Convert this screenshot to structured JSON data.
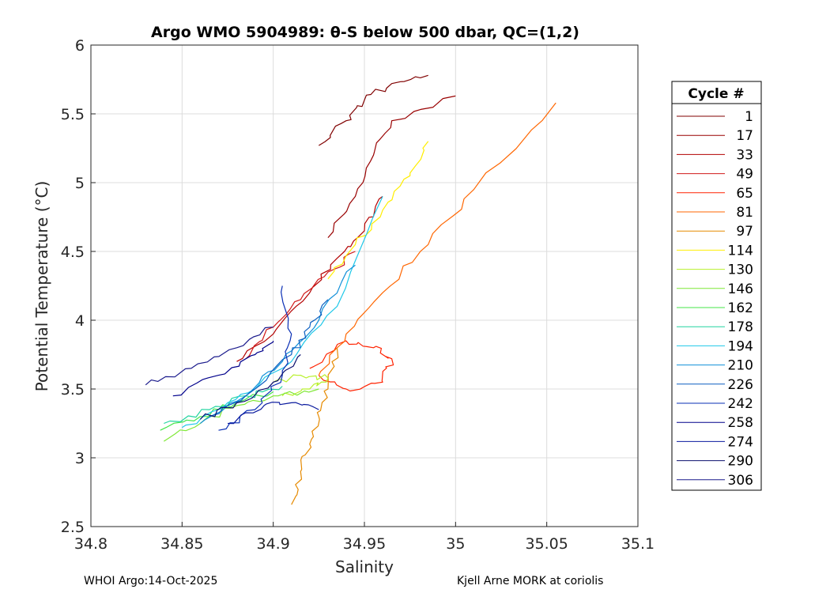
{
  "chart_data": {
    "type": "line",
    "title": "Argo WMO 5904989: θ-S below 500 dbar,  QC=(1,2)",
    "xlabel": "Salinity",
    "ylabel": "Potential Temperature (°C)",
    "xlim": [
      34.8,
      35.1
    ],
    "ylim": [
      2.5,
      6
    ],
    "xticks": [
      34.8,
      34.85,
      34.9,
      34.95,
      35,
      35.05,
      35.1
    ],
    "xtick_labels": [
      "34.8",
      "34.85",
      "34.9",
      "34.95",
      "35",
      "35.05",
      "35.1"
    ],
    "yticks": [
      2.5,
      3,
      3.5,
      4,
      4.5,
      5,
      5.5,
      6
    ],
    "ytick_labels": [
      "2.5",
      "3",
      "3.5",
      "4",
      "4.5",
      "5",
      "5.5",
      "6"
    ],
    "grid": true,
    "legend_title": "Cycle #",
    "legend_position": "right",
    "series": [
      {
        "name": "1",
        "color": "#800000",
        "points": [
          [
            34.925,
            5.27
          ],
          [
            34.94,
            5.45
          ],
          [
            34.95,
            5.6
          ],
          [
            34.965,
            5.72
          ],
          [
            34.985,
            5.78
          ]
        ]
      },
      {
        "name": "17",
        "color": "#990000",
        "points": [
          [
            34.93,
            4.6
          ],
          [
            34.945,
            4.9
          ],
          [
            34.955,
            5.2
          ],
          [
            34.965,
            5.45
          ],
          [
            35.0,
            5.63
          ]
        ]
      },
      {
        "name": "33",
        "color": "#b30000",
        "points": [
          [
            34.88,
            3.7
          ],
          [
            34.9,
            3.9
          ],
          [
            34.92,
            4.2
          ],
          [
            34.935,
            4.45
          ],
          [
            34.95,
            4.65
          ],
          [
            34.96,
            4.9
          ]
        ]
      },
      {
        "name": "49",
        "color": "#d11a1a",
        "points": [
          [
            34.885,
            3.72
          ],
          [
            34.9,
            3.95
          ],
          [
            34.915,
            4.15
          ],
          [
            34.93,
            4.35
          ],
          [
            34.945,
            4.5
          ]
        ]
      },
      {
        "name": "65",
        "color": "#ff2200",
        "points": [
          [
            34.92,
            3.65
          ],
          [
            34.94,
            3.85
          ],
          [
            34.955,
            3.8
          ],
          [
            34.965,
            3.72
          ],
          [
            34.96,
            3.55
          ],
          [
            34.94,
            3.5
          ],
          [
            34.925,
            3.6
          ]
        ]
      },
      {
        "name": "81",
        "color": "#ff6600",
        "points": [
          [
            34.925,
            3.6
          ],
          [
            34.94,
            3.9
          ],
          [
            34.96,
            4.2
          ],
          [
            34.985,
            4.55
          ],
          [
            35.01,
            4.95
          ],
          [
            35.055,
            5.58
          ]
        ]
      },
      {
        "name": "97",
        "color": "#e68a00",
        "points": [
          [
            34.91,
            2.66
          ],
          [
            34.915,
            2.9
          ],
          [
            34.92,
            3.1
          ],
          [
            34.925,
            3.3
          ],
          [
            34.93,
            3.5
          ],
          [
            34.935,
            3.8
          ]
        ]
      },
      {
        "name": "114",
        "color": "#ffee00",
        "points": [
          [
            34.93,
            4.3
          ],
          [
            34.945,
            4.55
          ],
          [
            34.96,
            4.8
          ],
          [
            34.975,
            5.05
          ],
          [
            34.985,
            5.3
          ]
        ]
      },
      {
        "name": "130",
        "color": "#b8f02c",
        "points": [
          [
            34.9,
            3.55
          ],
          [
            34.915,
            3.6
          ],
          [
            34.93,
            3.58
          ],
          [
            34.92,
            3.5
          ],
          [
            34.905,
            3.45
          ]
        ]
      },
      {
        "name": "146",
        "color": "#7fe836",
        "points": [
          [
            34.84,
            3.12
          ],
          [
            34.86,
            3.25
          ],
          [
            34.88,
            3.38
          ],
          [
            34.9,
            3.45
          ],
          [
            34.925,
            3.5
          ]
        ]
      },
      {
        "name": "162",
        "color": "#44e64a",
        "points": [
          [
            34.838,
            3.2
          ],
          [
            34.86,
            3.3
          ],
          [
            34.88,
            3.4
          ],
          [
            34.9,
            3.48
          ]
        ]
      },
      {
        "name": "178",
        "color": "#22d4a0",
        "points": [
          [
            34.84,
            3.25
          ],
          [
            34.865,
            3.35
          ],
          [
            34.885,
            3.45
          ],
          [
            34.905,
            3.52
          ]
        ]
      },
      {
        "name": "194",
        "color": "#1fc8e8",
        "points": [
          [
            34.85,
            3.22
          ],
          [
            34.87,
            3.35
          ],
          [
            34.89,
            3.5
          ],
          [
            34.91,
            3.7
          ],
          [
            34.935,
            4.1
          ],
          [
            34.96,
            4.9
          ]
        ]
      },
      {
        "name": "210",
        "color": "#108fd8",
        "points": [
          [
            34.86,
            3.25
          ],
          [
            34.885,
            3.45
          ],
          [
            34.905,
            3.7
          ],
          [
            34.925,
            4.0
          ],
          [
            34.945,
            4.4
          ]
        ]
      },
      {
        "name": "226",
        "color": "#0b5fc0",
        "points": [
          [
            34.865,
            3.3
          ],
          [
            34.89,
            3.5
          ],
          [
            34.91,
            3.75
          ],
          [
            34.92,
            3.95
          ],
          [
            34.93,
            4.15
          ]
        ]
      },
      {
        "name": "242",
        "color": "#0a2fb5",
        "points": [
          [
            34.87,
            3.2
          ],
          [
            34.89,
            3.35
          ],
          [
            34.905,
            3.6
          ],
          [
            34.91,
            3.9
          ],
          [
            34.905,
            4.25
          ]
        ]
      },
      {
        "name": "258",
        "color": "#00008b",
        "points": [
          [
            34.845,
            3.45
          ],
          [
            34.87,
            3.6
          ],
          [
            34.89,
            3.75
          ],
          [
            34.9,
            3.85
          ]
        ]
      },
      {
        "name": "274",
        "color": "#0a1a9e",
        "points": [
          [
            34.875,
            3.25
          ],
          [
            34.895,
            3.38
          ],
          [
            34.91,
            3.4
          ],
          [
            34.925,
            3.35
          ]
        ]
      },
      {
        "name": "290",
        "color": "#0b0f6e",
        "points": [
          [
            34.86,
            3.28
          ],
          [
            34.88,
            3.4
          ],
          [
            34.9,
            3.55
          ],
          [
            34.915,
            3.75
          ]
        ]
      },
      {
        "name": "306",
        "color": "#1a1a8c",
        "points": [
          [
            34.83,
            3.53
          ],
          [
            34.855,
            3.65
          ],
          [
            34.88,
            3.8
          ],
          [
            34.9,
            3.95
          ]
        ]
      }
    ]
  },
  "footer": {
    "left": "WHOI Argo:14-Oct-2025",
    "right": "Kjell Arne MORK at coriolis"
  }
}
